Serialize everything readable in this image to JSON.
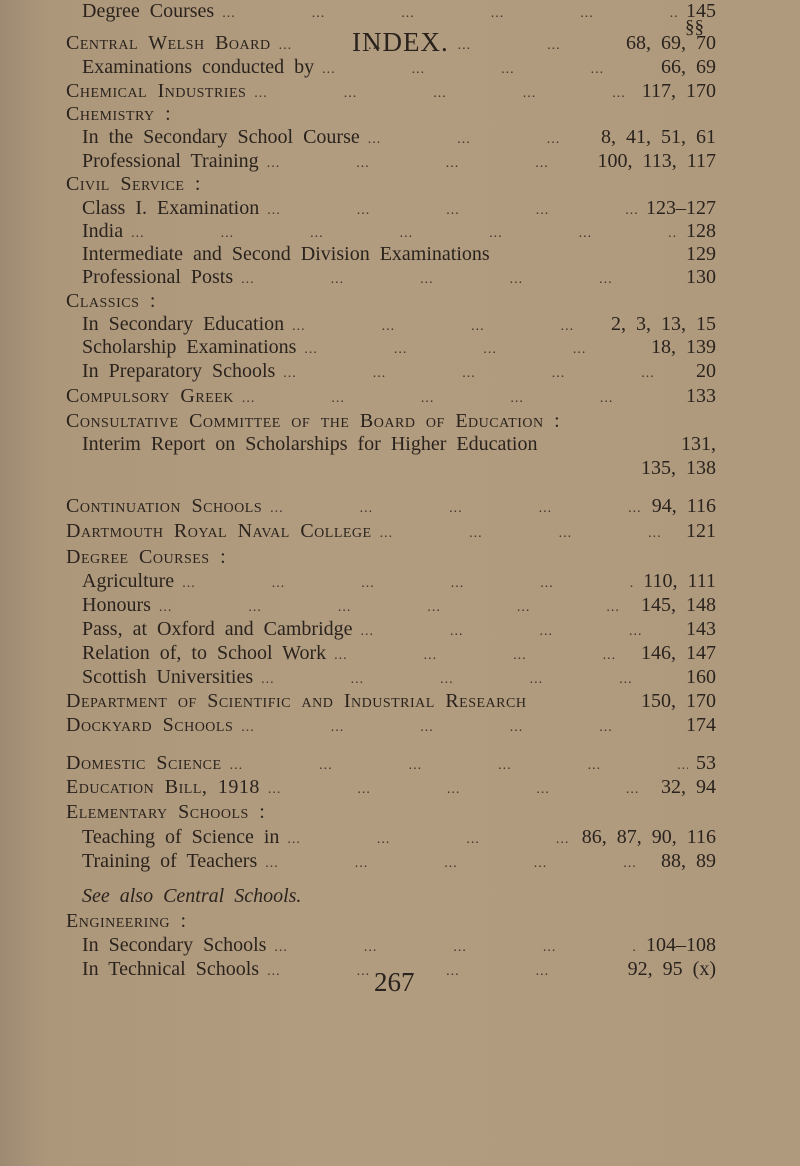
{
  "page": {
    "title": "INDEX.",
    "column_header": "§§",
    "folio": "267"
  },
  "entries": [
    {
      "label": "Central Welsh Board",
      "pages": "68, 69, 70",
      "level": 0
    },
    {
      "label": "Examinations conducted by",
      "pages": "66, 69",
      "level": 1
    },
    {
      "label": "Chemical Industries",
      "pages": "117, 170",
      "level": 0
    },
    {
      "label": "Chemistry :",
      "pages": "",
      "level": 0
    },
    {
      "label": "In the Secondary School Course",
      "pages": "8, 41, 51, 61",
      "level": 1
    },
    {
      "label": "Professional Training",
      "pages": "100, 113, 117",
      "level": 1
    },
    {
      "label": "Civil Service :",
      "pages": "",
      "level": 0
    },
    {
      "label": "Class I. Examination",
      "pages": "123–127",
      "level": 1
    },
    {
      "label": "India",
      "pages": "128",
      "level": 1
    },
    {
      "label": "Intermediate and Second Division Examinations",
      "pages": "129",
      "level": 1
    },
    {
      "label": "Professional Posts",
      "pages": "130",
      "level": 1
    },
    {
      "label": "Classics :",
      "pages": "",
      "level": 0
    },
    {
      "label": "In Secondary Education",
      "pages": "2, 3, 13, 15",
      "level": 1
    },
    {
      "label": "Scholarship Examinations",
      "pages": "18, 139",
      "level": 1
    },
    {
      "label": "In Preparatory Schools",
      "pages": "20",
      "level": 1
    },
    {
      "label": "Compulsory Greek",
      "pages": "133",
      "level": 0
    },
    {
      "label": "Consultative Committee of the Board of Education :",
      "pages": "",
      "level": 0
    },
    {
      "label": "Interim Report on Scholarships for Higher Education",
      "pages": "131,",
      "level": 1
    },
    {
      "label": "",
      "pages": "135, 138",
      "level": 1
    },
    {
      "label": "Continuation Schools",
      "pages": "94, 116",
      "level": 0
    },
    {
      "label": "Dartmouth Royal Naval College",
      "pages": "121",
      "level": 0
    },
    {
      "label": "Degree Courses :",
      "pages": "",
      "level": 0
    },
    {
      "label": "Agriculture",
      "pages": "110, 111",
      "level": 1
    },
    {
      "label": "Honours",
      "pages": "145, 148",
      "level": 1
    },
    {
      "label": "Pass, at Oxford and Cambridge",
      "pages": "143",
      "level": 1
    },
    {
      "label": "Relation of, to School Work",
      "pages": "146, 147",
      "level": 1
    },
    {
      "label": "Scottish Universities",
      "pages": "160",
      "level": 1
    },
    {
      "label": "Department of Scientific and Industrial Research",
      "pages": "150, 170",
      "level": 0
    },
    {
      "label": "Dockyard Schools",
      "pages": "174",
      "level": 0
    },
    {
      "label": "Domestic Science",
      "pages": "53",
      "level": 0
    },
    {
      "label": "Education Bill, 1918",
      "pages": "32, 94",
      "level": 0
    },
    {
      "label": "Elementary Schools :",
      "pages": "",
      "level": 0
    },
    {
      "label": "Teaching of Science in",
      "pages": "86, 87, 90, 116",
      "level": 1
    },
    {
      "label": "Training of Teachers",
      "pages": "88, 89",
      "level": 1
    },
    {
      "label": "See also Central Schools.",
      "pages": "",
      "level": 1,
      "italic": true
    },
    {
      "label": "Engineering :",
      "pages": "",
      "level": 0
    },
    {
      "label": "In Secondary Schools",
      "pages": "104–108",
      "level": 1
    },
    {
      "label": "In Technical Schools",
      "pages": "92, 95 (x)",
      "level": 1
    },
    {
      "label": "Degree Courses",
      "pages": "145",
      "level": 1
    }
  ]
}
